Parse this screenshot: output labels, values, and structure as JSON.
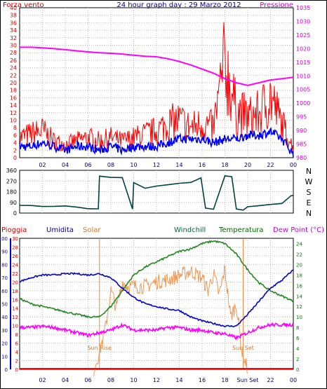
{
  "chart_data": [
    {
      "type": "line",
      "panel": "wind-pressure",
      "title": "24 hour graph day : 29 Marzo 2012",
      "left_axis_label": "Forza vento",
      "right_axis_label": "Pressione",
      "x_ticks": [
        "02",
        "04",
        "06",
        "08",
        "10",
        "12",
        "14",
        "16",
        "18",
        "20",
        "22",
        "00"
      ],
      "y_left_range": [
        0,
        40
      ],
      "y_left_ticks": [
        "0",
        "2",
        "4",
        "6",
        "8",
        "10",
        "12",
        "14",
        "16",
        "18",
        "20",
        "22",
        "24",
        "26",
        "28",
        "30",
        "32",
        "34",
        "36",
        "38",
        "40"
      ],
      "y_right_range": [
        980,
        1035
      ],
      "y_right_ticks": [
        "980",
        "985",
        "990",
        "995",
        "1000",
        "1005",
        "1010",
        "1015",
        "1020",
        "1025",
        "1030",
        "1035"
      ],
      "grid": true,
      "colors": {
        "gust": "#ff0000",
        "wind": "#0000ff",
        "pressure": "#ff00ff",
        "left_axis": "#cc0000",
        "right_axis": "#cc00cc"
      },
      "series": [
        {
          "name": "Pressione",
          "x": [
            1,
            2,
            3,
            4,
            5,
            6,
            7,
            8,
            9,
            10,
            11,
            12,
            13,
            14,
            15,
            16,
            17,
            18,
            19,
            20,
            21,
            22,
            23,
            24
          ],
          "values": [
            1020.5,
            1020.3,
            1020.0,
            1019.6,
            1019.2,
            1018.8,
            1018.5,
            1018.3,
            1018.0,
            1017.6,
            1017.2,
            1017.0,
            1016.3,
            1015.3,
            1014.0,
            1012.5,
            1011.0,
            1009.0,
            1007.5,
            1006.5,
            1007.5,
            1008.5,
            1009.0,
            1009.5
          ]
        },
        {
          "name": "wind",
          "x": [
            0,
            1,
            2,
            3,
            4,
            5,
            6,
            7,
            8,
            9,
            10,
            11,
            12,
            13,
            14,
            15,
            16,
            17,
            18,
            19,
            20,
            21,
            22,
            23,
            24
          ],
          "values": [
            3,
            3,
            4,
            3,
            2,
            3,
            3,
            2,
            3,
            2,
            3,
            3,
            3,
            4,
            5,
            5,
            5,
            4,
            5,
            5,
            6,
            6,
            7,
            5,
            1
          ]
        },
        {
          "name": "gust",
          "x": [
            0,
            1,
            2,
            3,
            4,
            5,
            6,
            7,
            8,
            9,
            10,
            11,
            12,
            13,
            14,
            15,
            16,
            17,
            18,
            19,
            20,
            21,
            22,
            23,
            24
          ],
          "values": [
            6,
            7,
            8,
            5,
            4,
            5,
            6,
            5,
            6,
            5,
            6,
            7,
            8,
            10,
            11,
            9,
            10,
            9,
            28,
            14,
            12,
            13,
            18,
            10,
            3
          ]
        }
      ]
    },
    {
      "type": "line",
      "panel": "wind-direction",
      "x_ticks": [
        "02",
        "04",
        "06",
        "08",
        "10",
        "12",
        "14",
        "16",
        "18",
        "20",
        "22",
        "00"
      ],
      "y_range": [
        0,
        360
      ],
      "y_ticks": [
        "0",
        "90",
        "180",
        "270",
        "360"
      ],
      "compass_labels": [
        "N",
        "W",
        "S",
        "E",
        "N"
      ],
      "grid": true,
      "colors": {
        "line": "#004040"
      },
      "series": [
        {
          "name": "direction",
          "x": [
            0,
            1,
            2,
            3,
            4,
            5,
            6,
            6.9,
            7.0,
            8,
            9,
            9.9,
            10.0,
            11,
            12,
            13,
            14,
            15,
            15.9,
            16.3,
            17,
            18,
            18.6,
            19.0,
            19.6,
            20,
            21,
            22,
            23,
            23.8,
            24
          ],
          "values": [
            65,
            65,
            62,
            60,
            58,
            55,
            30,
            30,
            310,
            305,
            300,
            30,
            260,
            210,
            230,
            240,
            255,
            265,
            300,
            40,
            30,
            320,
            300,
            40,
            30,
            50,
            60,
            70,
            80,
            140,
            150
          ]
        }
      ]
    },
    {
      "type": "line",
      "panel": "temperature-humidity-solar",
      "legend": [
        "Pioggia",
        "Umidita",
        "Solar",
        "Windchill",
        "Temperatura",
        "Dew Point (°C)"
      ],
      "x_ticks": [
        "02",
        "04",
        "06",
        "08",
        "10",
        "12",
        "14",
        "16",
        "18",
        "Sun Set",
        "22",
        "00"
      ],
      "humidity_range": [
        0,
        100
      ],
      "humidity_ticks": [
        "0",
        "10",
        "20",
        "30",
        "40",
        "50",
        "60",
        "70",
        "80",
        "90",
        "100"
      ],
      "rain_range": [
        0,
        30
      ],
      "rain_ticks": [
        "0",
        "2",
        "4",
        "6",
        "8",
        "10",
        "12",
        "14",
        "16",
        "18",
        "20",
        "22",
        "24",
        "26",
        "28",
        "30"
      ],
      "temp_range": [
        0,
        25
      ],
      "temp_ticks": [
        "0",
        "2",
        "4",
        "6",
        "8",
        "10",
        "12",
        "14",
        "16",
        "18",
        "20",
        "22",
        "24"
      ],
      "annotations": [
        {
          "label": "Sun Rise",
          "x": 7.0
        },
        {
          "label": "Sun Set",
          "x": 19.6
        }
      ],
      "grid": true,
      "colors": {
        "rain": "#ff0000",
        "humidity": "#0000cc",
        "solar": "#ee9955",
        "windchill": "#007700",
        "temperature": "#228822",
        "dewpoint": "#ff00ff",
        "sun_lines": "#ee8844"
      },
      "series": [
        {
          "name": "Umidita",
          "x": [
            0,
            1,
            2,
            3,
            4,
            5,
            6,
            7,
            8,
            9,
            10,
            11,
            12,
            13,
            14,
            15,
            16,
            17,
            18,
            19,
            20,
            21,
            22,
            23,
            24
          ],
          "values": [
            67,
            70,
            72,
            72,
            73,
            73,
            72,
            73,
            70,
            62,
            55,
            50,
            48,
            46,
            45,
            40,
            37,
            35,
            33,
            33,
            42,
            52,
            62,
            68,
            76
          ]
        },
        {
          "name": "Temperatura",
          "x": [
            0,
            1,
            2,
            3,
            4,
            5,
            6,
            7,
            8,
            9,
            10,
            11,
            12,
            13,
            14,
            15,
            16,
            17,
            18,
            19,
            20,
            21,
            22,
            23,
            24
          ],
          "values": [
            13.5,
            12.5,
            12,
            11.5,
            11,
            10.5,
            10,
            10,
            12,
            15,
            18,
            19.5,
            20.5,
            21.5,
            22.5,
            23,
            24,
            24.5,
            24,
            22,
            19,
            16.5,
            15,
            14,
            13
          ]
        },
        {
          "name": "Dew Point (°C)",
          "x": [
            0,
            1,
            2,
            3,
            4,
            5,
            6,
            7,
            8,
            9,
            10,
            11,
            12,
            13,
            14,
            15,
            16,
            17,
            18,
            19,
            20,
            21,
            22,
            23,
            24
          ],
          "values": [
            8,
            8,
            8.2,
            8,
            7.5,
            7,
            6.5,
            7,
            7.5,
            8.5,
            7.5,
            7.5,
            7.5,
            8,
            8,
            7.5,
            7.5,
            7,
            6.8,
            6,
            7,
            8,
            8.5,
            8.5,
            8.5
          ]
        },
        {
          "name": "Solar",
          "x": [
            6.5,
            7,
            7.5,
            8,
            8.5,
            9,
            9.5,
            10,
            11,
            12,
            13,
            14,
            15,
            16,
            16.5,
            17,
            17.5,
            18,
            18.5,
            19,
            19.5,
            20
          ],
          "values": [
            0,
            4,
            9,
            18,
            14,
            20,
            19,
            19,
            19,
            20,
            20.5,
            21.5,
            22.5,
            21,
            18,
            22,
            17,
            23,
            12,
            15,
            4,
            0
          ]
        },
        {
          "name": "Pioggia",
          "x": [
            0,
            24
          ],
          "values": [
            0,
            0
          ]
        }
      ]
    }
  ]
}
